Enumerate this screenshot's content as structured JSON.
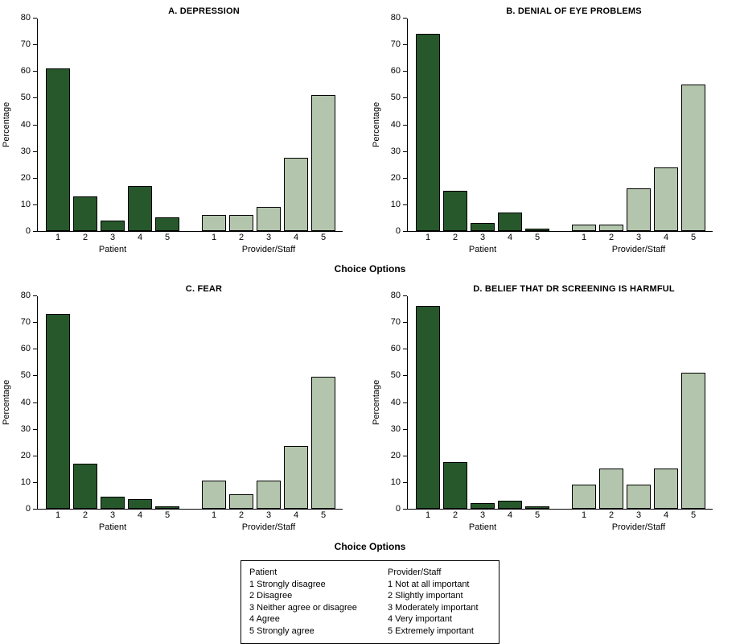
{
  "figure": {
    "ylabel": "Percentage",
    "xlabel": "Choice Options",
    "ymax": 80,
    "yticks": [
      0,
      10,
      20,
      30,
      40,
      50,
      60,
      70,
      80
    ],
    "group_labels": [
      "Patient",
      "Provider/Staff"
    ],
    "colors": {
      "patient": "#26582b",
      "provider": "#b3c6ad"
    }
  },
  "chart_data": [
    {
      "type": "bar",
      "title": "A. DEPRESSION",
      "categories": [
        "1",
        "2",
        "3",
        "4",
        "5"
      ],
      "series": [
        {
          "name": "Patient",
          "values": [
            61,
            13,
            4,
            17,
            5
          ]
        },
        {
          "name": "Provider/Staff",
          "values": [
            6,
            6,
            9,
            27.5,
            51
          ]
        }
      ],
      "ylabel": "Percentage",
      "xlabel": "Choice Options",
      "ylim": [
        0,
        80
      ],
      "grid": false,
      "legend_position": "none"
    },
    {
      "type": "bar",
      "title": "B. DENIAL OF EYE PROBLEMS",
      "categories": [
        "1",
        "2",
        "3",
        "4",
        "5"
      ],
      "series": [
        {
          "name": "Patient",
          "values": [
            74,
            15,
            3,
            7,
            1
          ]
        },
        {
          "name": "Provider/Staff",
          "values": [
            2.5,
            2.5,
            16,
            24,
            55
          ]
        }
      ],
      "ylabel": "Percentage",
      "xlabel": "Choice Options",
      "ylim": [
        0,
        80
      ],
      "grid": false,
      "legend_position": "none"
    },
    {
      "type": "bar",
      "title": "C. FEAR",
      "categories": [
        "1",
        "2",
        "3",
        "4",
        "5"
      ],
      "series": [
        {
          "name": "Patient",
          "values": [
            73,
            17,
            4.5,
            3.5,
            1
          ]
        },
        {
          "name": "Provider/Staff",
          "values": [
            10.5,
            5.5,
            10.5,
            23.5,
            49.5
          ]
        }
      ],
      "ylabel": "Percentage",
      "xlabel": "Choice Options",
      "ylim": [
        0,
        80
      ],
      "grid": false,
      "legend_position": "none"
    },
    {
      "type": "bar",
      "title": "D. BELIEF THAT DR SCREENING IS HARMFUL",
      "categories": [
        "1",
        "2",
        "3",
        "4",
        "5"
      ],
      "series": [
        {
          "name": "Patient",
          "values": [
            76,
            17.5,
            2,
            3,
            1
          ]
        },
        {
          "name": "Provider/Staff",
          "values": [
            9,
            15,
            9,
            15,
            51
          ]
        }
      ],
      "ylabel": "Percentage",
      "xlabel": "Choice Options",
      "ylim": [
        0,
        80
      ],
      "grid": false,
      "legend_position": "none"
    }
  ],
  "legend": {
    "columns": [
      {
        "header": "Patient",
        "items": [
          "1 Strongly disagree",
          "2 Disagree",
          "3 Neither agree or disagree",
          "4 Agree",
          "5 Strongly agree"
        ]
      },
      {
        "header": "Provider/Staff",
        "items": [
          "1 Not at all important",
          "2 Slightly important",
          "3 Moderately important",
          "4 Very important",
          "5 Extremely important"
        ]
      }
    ]
  }
}
